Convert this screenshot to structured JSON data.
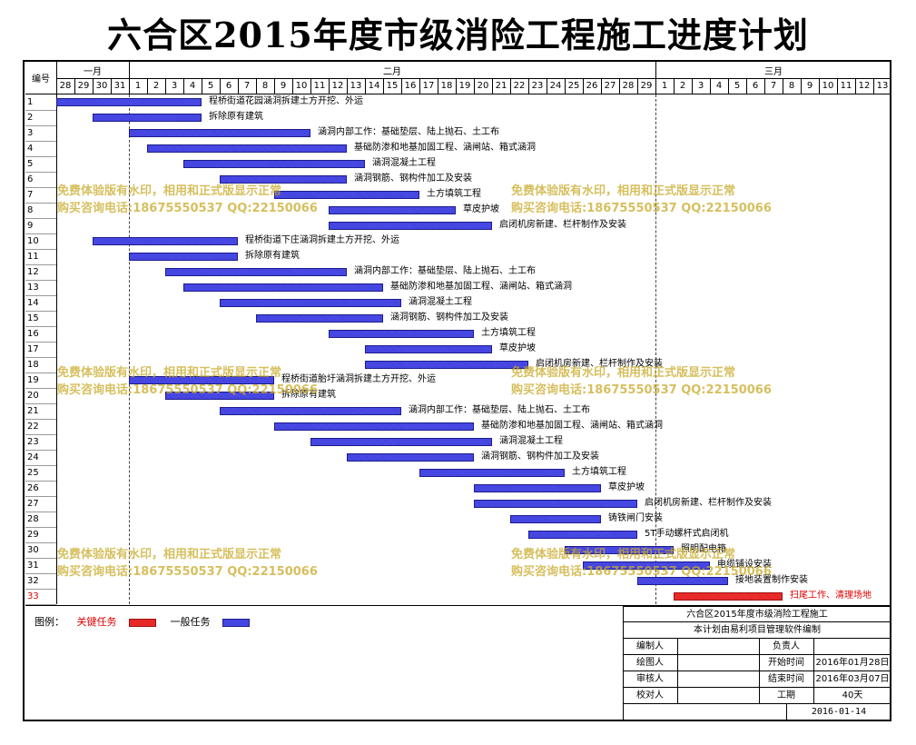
{
  "title": "六合区2015年度市级消险工程施工进度计划",
  "header": {
    "id_label": "编号",
    "months": [
      "一月",
      "二月",
      "三月"
    ],
    "days": [
      "28",
      "29",
      "30",
      "31",
      "1",
      "2",
      "3",
      "4",
      "5",
      "6",
      "7",
      "8",
      "9",
      "10",
      "11",
      "12",
      "13",
      "14",
      "15",
      "16",
      "17",
      "18",
      "19",
      "20",
      "21",
      "22",
      "23",
      "24",
      "25",
      "26",
      "27",
      "28",
      "29",
      "1",
      "2",
      "3",
      "4",
      "5",
      "6",
      "7",
      "8",
      "9",
      "10",
      "11",
      "12",
      "13"
    ]
  },
  "tasks": [
    {
      "id": "1",
      "name": "程桥街道花园涵洞拆建土方开挖、外运",
      "start": 0,
      "end": 8,
      "critical": false
    },
    {
      "id": "2",
      "name": "拆除原有建筑",
      "start": 2,
      "end": 8,
      "critical": false
    },
    {
      "id": "3",
      "name": "涵洞内部工作：基础垫层、陆上抛石、土工布",
      "start": 4,
      "end": 14,
      "critical": false
    },
    {
      "id": "4",
      "name": "基础防渗和地基加固工程、涵闸站、箱式涵洞",
      "start": 5,
      "end": 16,
      "critical": false
    },
    {
      "id": "5",
      "name": "涵洞混凝土工程",
      "start": 7,
      "end": 17,
      "critical": false
    },
    {
      "id": "6",
      "name": "涵洞钢筋、钢构件加工及安装",
      "start": 9,
      "end": 16,
      "critical": false
    },
    {
      "id": "7",
      "name": "土方填筑工程",
      "start": 12,
      "end": 20,
      "critical": false
    },
    {
      "id": "8",
      "name": "草皮护坡",
      "start": 15,
      "end": 22,
      "critical": false
    },
    {
      "id": "9",
      "name": "启闭机房新建、栏杆制作及安装",
      "start": 15,
      "end": 24,
      "critical": false
    },
    {
      "id": "10",
      "name": "程桥街道下庄涵洞拆建土方开挖、外运",
      "start": 2,
      "end": 10,
      "critical": false
    },
    {
      "id": "11",
      "name": "拆除原有建筑",
      "start": 4,
      "end": 10,
      "critical": false
    },
    {
      "id": "12",
      "name": "涵洞内部工作：基础垫层、陆上抛石、土工布",
      "start": 6,
      "end": 16,
      "critical": false
    },
    {
      "id": "13",
      "name": "基础防渗和地基加固工程、涵闸站、箱式涵洞",
      "start": 7,
      "end": 18,
      "critical": false
    },
    {
      "id": "14",
      "name": "涵洞混凝土工程",
      "start": 9,
      "end": 19,
      "critical": false
    },
    {
      "id": "15",
      "name": "涵洞钢筋、钢构件加工及安装",
      "start": 11,
      "end": 18,
      "critical": false
    },
    {
      "id": "16",
      "name": "土方填筑工程",
      "start": 15,
      "end": 23,
      "critical": false
    },
    {
      "id": "17",
      "name": "草皮护坡",
      "start": 17,
      "end": 24,
      "critical": false
    },
    {
      "id": "18",
      "name": "启闭机房新建、栏杆制作及安装",
      "start": 17,
      "end": 26,
      "critical": false
    },
    {
      "id": "19",
      "name": "程桥街道胎圩涵洞拆建土方开挖、外运",
      "start": 4,
      "end": 12,
      "critical": false
    },
    {
      "id": "20",
      "name": "拆除原有建筑",
      "start": 6,
      "end": 12,
      "critical": false
    },
    {
      "id": "21",
      "name": "涵洞内部工作：基础垫层、陆上抛石、土工布",
      "start": 9,
      "end": 19,
      "critical": false
    },
    {
      "id": "22",
      "name": "基础防渗和地基加固工程、涵闸站、箱式涵洞",
      "start": 12,
      "end": 23,
      "critical": false
    },
    {
      "id": "23",
      "name": "涵洞混凝土工程",
      "start": 14,
      "end": 24,
      "critical": false
    },
    {
      "id": "24",
      "name": "涵洞钢筋、钢构件加工及安装",
      "start": 16,
      "end": 23,
      "critical": false
    },
    {
      "id": "25",
      "name": "土方填筑工程",
      "start": 20,
      "end": 28,
      "critical": false
    },
    {
      "id": "26",
      "name": "草皮护坡",
      "start": 23,
      "end": 30,
      "critical": false
    },
    {
      "id": "27",
      "name": "启闭机房新建、栏杆制作及安装",
      "start": 23,
      "end": 32,
      "critical": false
    },
    {
      "id": "28",
      "name": "铸铁闸门安装",
      "start": 25,
      "end": 30,
      "critical": false
    },
    {
      "id": "29",
      "name": "5T手动螺杆式启闭机",
      "start": 26,
      "end": 32,
      "critical": false
    },
    {
      "id": "30",
      "name": "照明配电箱",
      "start": 28,
      "end": 34,
      "critical": false
    },
    {
      "id": "31",
      "name": "电缆铺设安装",
      "start": 29,
      "end": 36,
      "critical": false
    },
    {
      "id": "32",
      "name": "接地装置制作安装",
      "start": 32,
      "end": 37,
      "critical": false
    },
    {
      "id": "33",
      "name": "扫尾工作、清理场地",
      "start": 34,
      "end": 40,
      "critical": true
    }
  ],
  "watermark": {
    "line1": "免费体验版有水印，相用和正式版显示正常",
    "line2": "购买咨询电话:18675550537 QQ:22150066"
  },
  "legend": {
    "label": "图例：",
    "critical": "关键任务",
    "normal": "一般任务",
    "critical_color": "#e02020",
    "normal_color": "#3d3dd6"
  },
  "title_block": {
    "project": "六合区2015年度市级消险工程施工",
    "note": "本计划由易利项目管理软件编制",
    "compiler_label": "编制人",
    "owner_label": "负责人",
    "drawer_label": "绘图人",
    "start_label": "开始时间",
    "start_value": "2016年01月28日",
    "reviewer_label": "审核人",
    "end_label": "结束时间",
    "end_value": "2016年03月07日",
    "checker_label": "校对人",
    "duration_label": "工期",
    "duration_value": "40天",
    "date": "2016-01-14"
  }
}
